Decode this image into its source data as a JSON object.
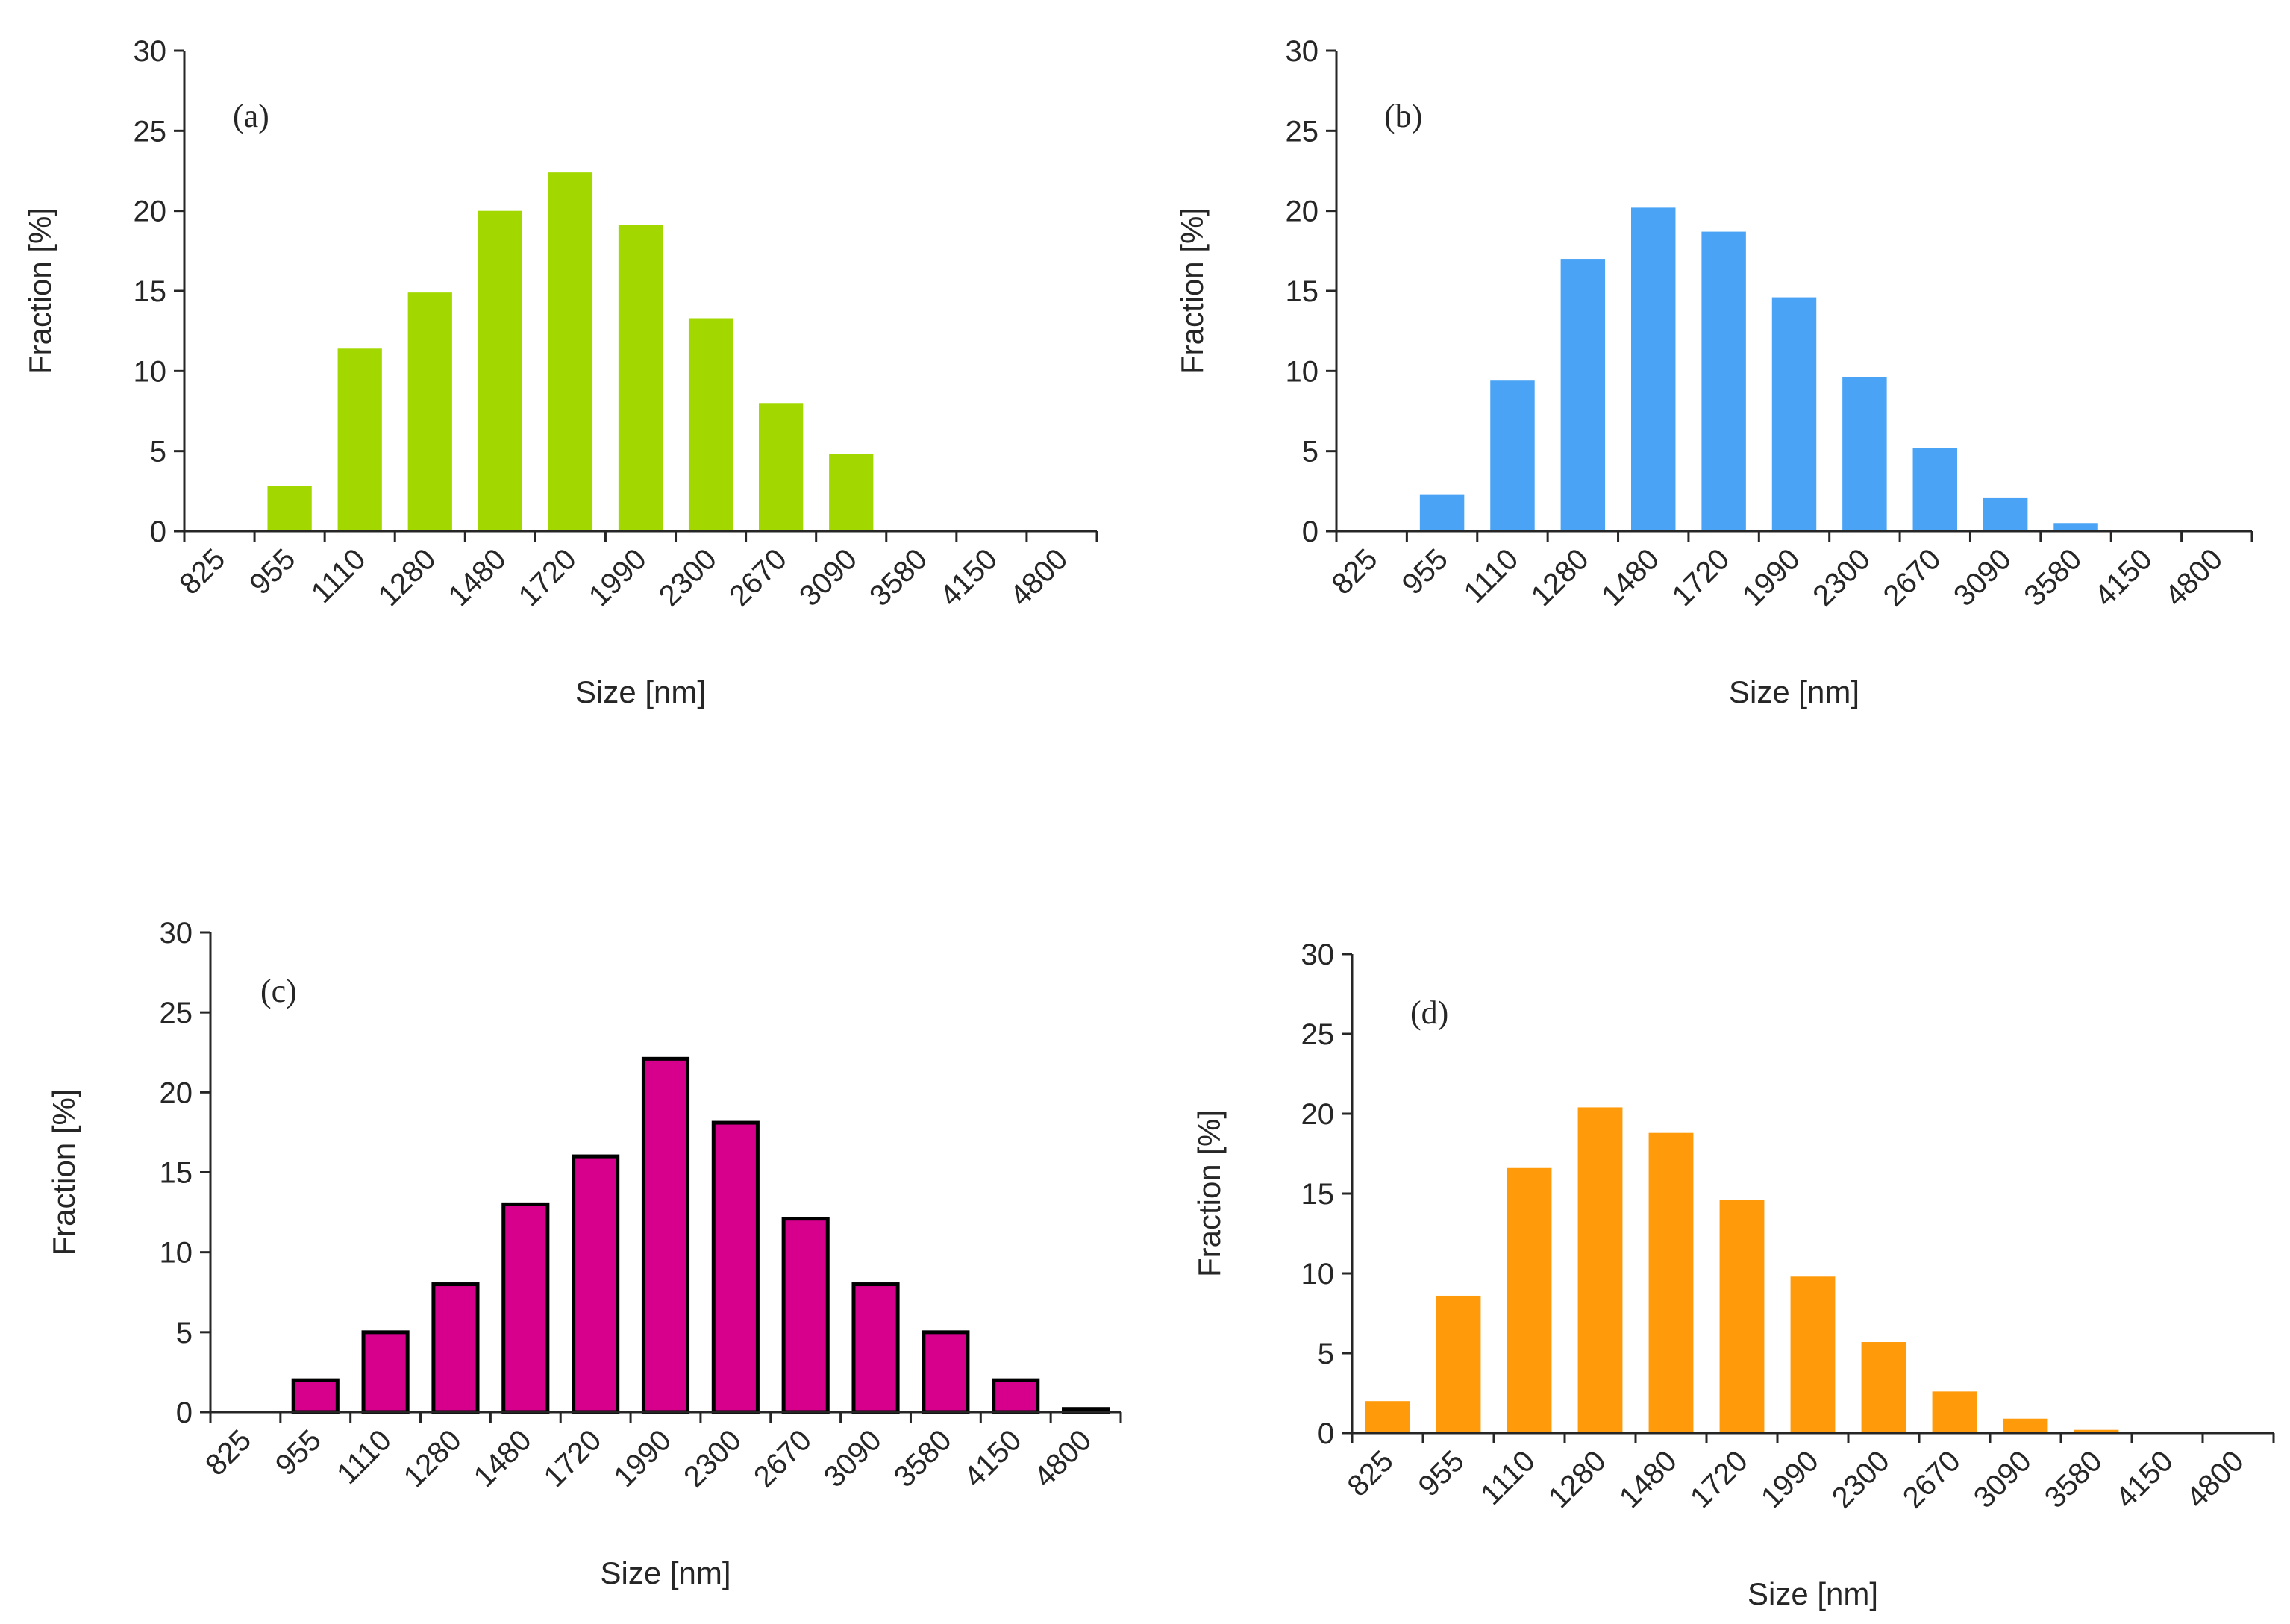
{
  "chart_data": [
    {
      "type": "bar",
      "panel_label": "(a)",
      "xlabel": "Size [nm]",
      "ylabel": "Fraction [%]",
      "ylim": [
        0,
        30
      ],
      "yticks": [
        "0",
        "5",
        "10",
        "15",
        "20",
        "25",
        "30"
      ],
      "categories": [
        "825",
        "955",
        "1110",
        "1280",
        "1480",
        "1720",
        "1990",
        "2300",
        "2670",
        "3090",
        "3580",
        "4150",
        "4800"
      ],
      "values": [
        0,
        2.8,
        11.4,
        14.9,
        20.0,
        22.4,
        19.1,
        13.3,
        8.0,
        4.8,
        0,
        0,
        0
      ],
      "color": "#a2d800",
      "outline": false
    },
    {
      "type": "bar",
      "panel_label": "(b)",
      "xlabel": "Size [nm]",
      "ylabel": "Fraction [%]",
      "ylim": [
        0,
        30
      ],
      "yticks": [
        "0",
        "5",
        "10",
        "15",
        "20",
        "25",
        "30"
      ],
      "categories": [
        "825",
        "955",
        "1110",
        "1280",
        "1480",
        "1720",
        "1990",
        "2300",
        "2670",
        "3090",
        "3580",
        "4150",
        "4800"
      ],
      "values": [
        0,
        2.3,
        9.4,
        17.0,
        20.2,
        18.7,
        14.6,
        9.6,
        5.2,
        2.1,
        0.5,
        0,
        0
      ],
      "color": "#4aa3f5",
      "outline": false
    },
    {
      "type": "bar",
      "panel_label": "(c)",
      "xlabel": "Size [nm]",
      "ylabel": "Fraction [%]",
      "ylim": [
        0,
        30
      ],
      "yticks": [
        "0",
        "5",
        "10",
        "15",
        "20",
        "25",
        "30"
      ],
      "categories": [
        "825",
        "955",
        "1110",
        "1280",
        "1480",
        "1720",
        "1990",
        "2300",
        "2670",
        "3090",
        "3580",
        "4150",
        "4800"
      ],
      "values": [
        0,
        2.0,
        5.0,
        8.0,
        13.0,
        16.0,
        22.1,
        18.1,
        12.1,
        8.0,
        5.0,
        2.0,
        0.2
      ],
      "color": "#d6008d",
      "outline": true
    },
    {
      "type": "bar",
      "panel_label": "(d)",
      "xlabel": "Size [nm]",
      "ylabel": "Fraction [%]",
      "ylim": [
        0,
        30
      ],
      "yticks": [
        "0",
        "5",
        "10",
        "15",
        "20",
        "25",
        "30"
      ],
      "categories": [
        "825",
        "955",
        "1110",
        "1280",
        "1480",
        "1720",
        "1990",
        "2300",
        "2670",
        "3090",
        "3580",
        "4150",
        "4800"
      ],
      "values": [
        2.0,
        8.6,
        16.6,
        20.4,
        18.8,
        14.6,
        9.8,
        5.7,
        2.6,
        0.9,
        0.2,
        0,
        0
      ],
      "color": "#ff9a0a",
      "outline": false
    }
  ]
}
